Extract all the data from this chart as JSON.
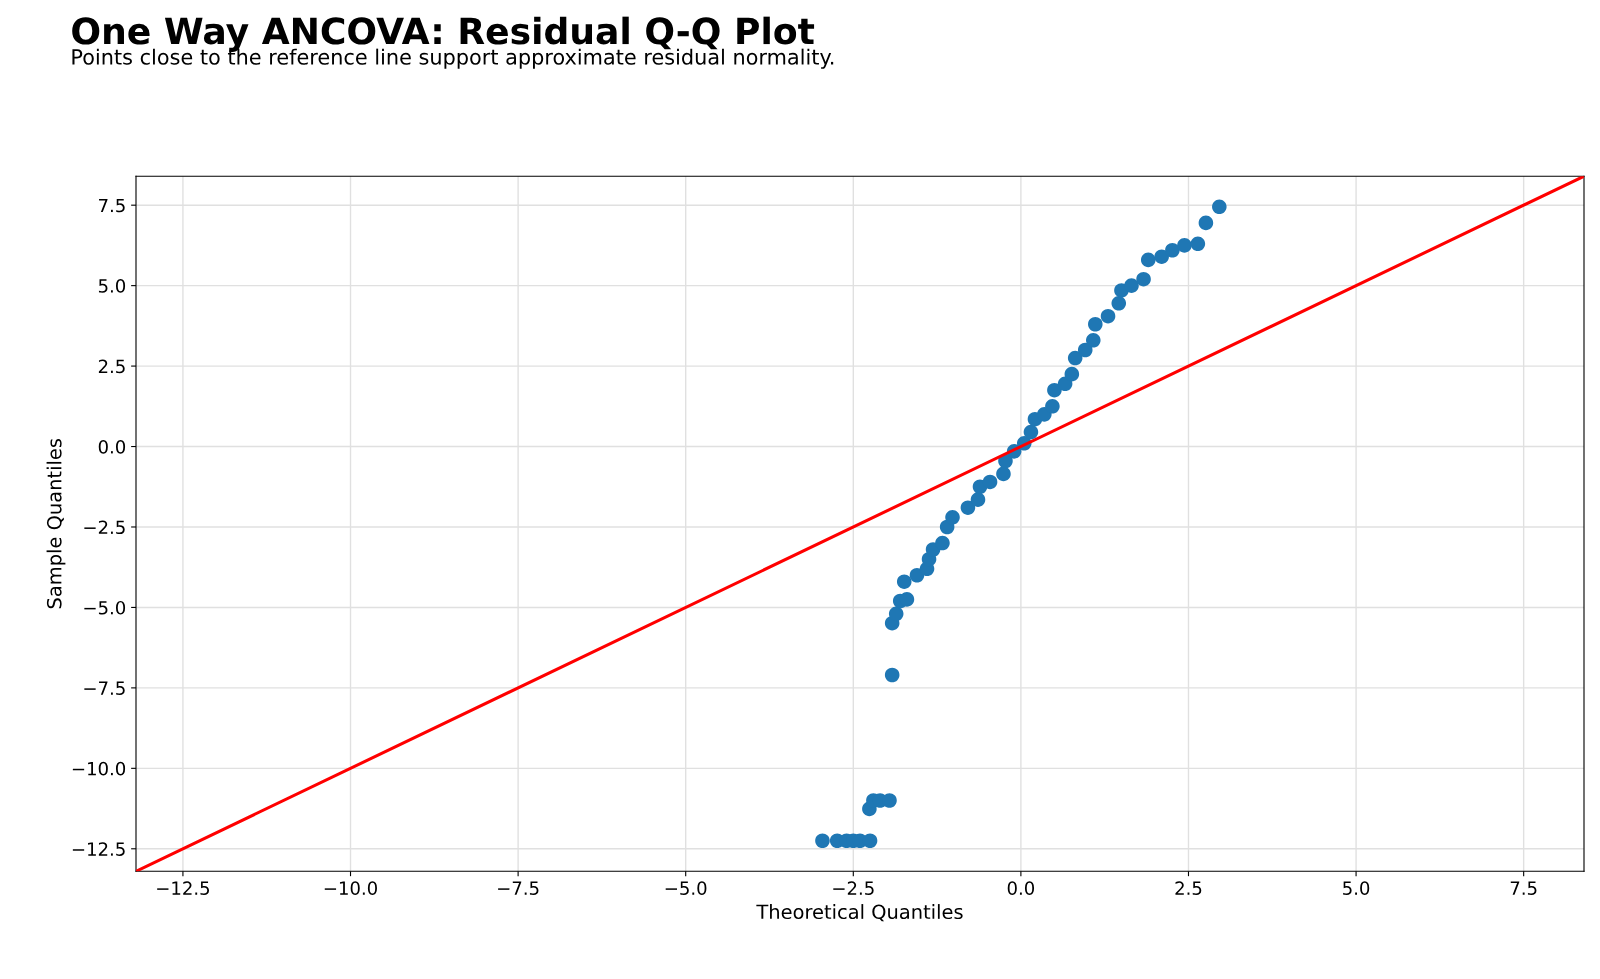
{
  "chart_data": {
    "type": "scatter",
    "title": "One Way ANCOVA: Residual Q-Q Plot",
    "subtitle": "Points close to the reference line support approximate residual normality.",
    "xlabel": "Theoretical Quantiles",
    "ylabel": "Sample Quantiles",
    "xlim": [
      -13.2,
      8.4
    ],
    "ylim": [
      -13.2,
      8.4
    ],
    "xticks": [
      {
        "value": -12.5,
        "label": "−12.5"
      },
      {
        "value": -10,
        "label": "−10.0"
      },
      {
        "value": -7.5,
        "label": "−7.5"
      },
      {
        "value": -5,
        "label": "−5.0"
      },
      {
        "value": -2.5,
        "label": "−2.5"
      },
      {
        "value": 0,
        "label": "0.0"
      },
      {
        "value": 2.5,
        "label": "2.5"
      },
      {
        "value": 5,
        "label": "5.0"
      },
      {
        "value": 7.5,
        "label": "7.5"
      }
    ],
    "yticks": [
      {
        "value": -12.5,
        "label": "−12.5"
      },
      {
        "value": -10,
        "label": "−10.0"
      },
      {
        "value": -7.5,
        "label": "−7.5"
      },
      {
        "value": -5,
        "label": "−5.0"
      },
      {
        "value": -2.5,
        "label": "−2.5"
      },
      {
        "value": 0,
        "label": "0.0"
      },
      {
        "value": 2.5,
        "label": "2.5"
      },
      {
        "value": 5,
        "label": "5.0"
      },
      {
        "value": 7.5,
        "label": "7.5"
      }
    ],
    "grid": true,
    "series": [
      {
        "color": "#1f77b4",
        "marker": "circle",
        "x": [
          -2.96,
          -2.74,
          -2.6,
          -2.5,
          -2.4,
          -2.25,
          -2.26,
          -2.2,
          -2.1,
          -1.96,
          -1.92,
          -1.92,
          -1.86,
          -1.8,
          -1.7,
          -1.74,
          -1.55,
          -1.4,
          -1.37,
          -1.31,
          -1.17,
          -1.1,
          -1.02,
          -0.79,
          -0.64,
          -0.61,
          -0.46,
          -0.26,
          -0.23,
          -0.1,
          0.05,
          0.15,
          0.21,
          0.35,
          0.47,
          0.5,
          0.66,
          0.76,
          0.81,
          0.96,
          1.08,
          1.11,
          1.3,
          1.46,
          1.5,
          1.65,
          1.83,
          1.9,
          2.1,
          2.26,
          2.44,
          2.64,
          2.76,
          2.96
        ],
        "values": [
          -12.25,
          -12.25,
          -12.25,
          -12.25,
          -12.25,
          -12.25,
          -11.26,
          -11.0,
          -11.0,
          -11.0,
          -7.1,
          -5.49,
          -5.2,
          -4.8,
          -4.75,
          -4.2,
          -4.0,
          -3.8,
          -3.5,
          -3.2,
          -3.0,
          -2.5,
          -2.2,
          -1.9,
          -1.65,
          -1.25,
          -1.1,
          -0.85,
          -0.45,
          -0.15,
          0.1,
          0.45,
          0.85,
          1.0,
          1.25,
          1.75,
          1.95,
          2.25,
          2.75,
          3.0,
          3.3,
          3.8,
          4.05,
          4.45,
          4.85,
          5.0,
          5.2,
          5.8,
          5.9,
          6.1,
          6.25,
          6.3,
          6.95,
          7.45
        ]
      },
      {
        "type": "line",
        "marker": "none",
        "color": "#ff0000",
        "x": [
          -13.2,
          8.4
        ],
        "values": [
          -13.2,
          8.4
        ]
      }
    ]
  }
}
